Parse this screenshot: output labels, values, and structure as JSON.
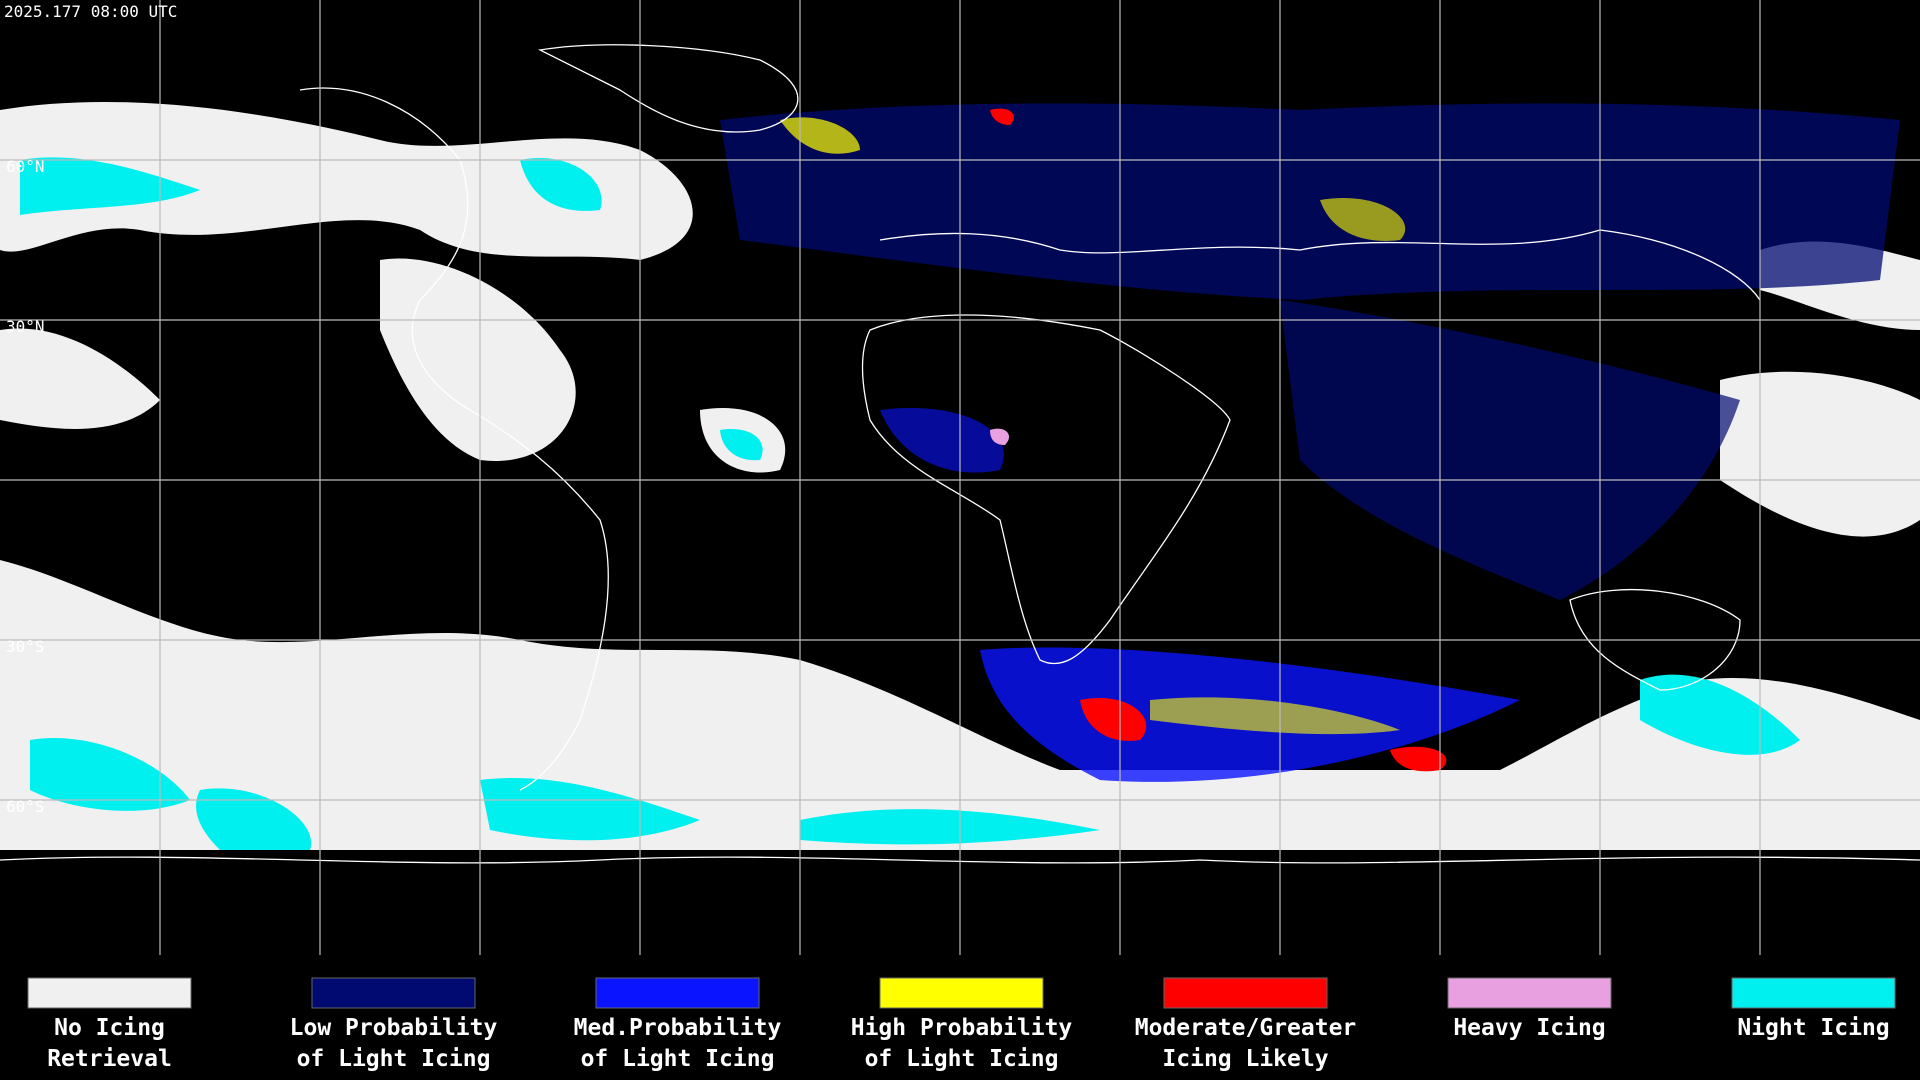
{
  "timestamp": "2025.177 08:00 UTC",
  "latitude_labels": [
    "60°N",
    "30°N",
    "30°S",
    "60°S"
  ],
  "legend": [
    {
      "lines": [
        "No Icing",
        "Retrieval"
      ],
      "color": "#f0f0f0"
    },
    {
      "lines": [
        "Low Probability",
        "of Light Icing"
      ],
      "color": "#000a70"
    },
    {
      "lines": [
        "Med.Probability",
        "of Light Icing"
      ],
      "color": "#0a14ff"
    },
    {
      "lines": [
        "High Probability",
        "of Light Icing"
      ],
      "color": "#ffff00"
    },
    {
      "lines": [
        "Moderate/Greater",
        "Icing Likely"
      ],
      "color": "#ff0000"
    },
    {
      "lines": [
        "Heavy Icing"
      ],
      "color": "#e8a0e0"
    },
    {
      "lines": [
        "Night Icing"
      ],
      "color": "#00f0f0"
    }
  ]
}
